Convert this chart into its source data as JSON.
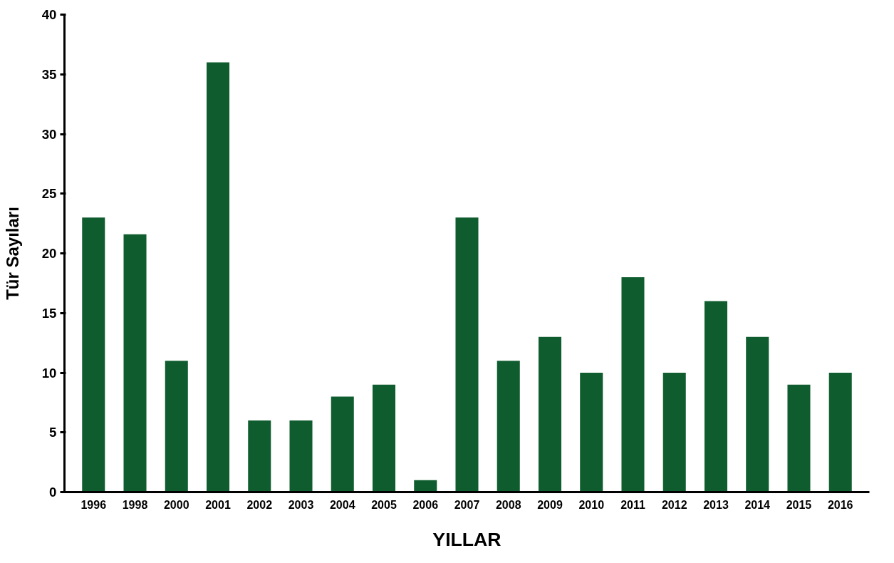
{
  "chart_data": {
    "type": "bar",
    "xlabel": "YILLAR",
    "ylabel": "Tür Sayıları",
    "categories": [
      "1996",
      "1998",
      "2000",
      "2001",
      "2002",
      "2003",
      "2004",
      "2005",
      "2006",
      "2007",
      "2008",
      "2009",
      "2010",
      "2011",
      "2012",
      "2013",
      "2014",
      "2015",
      "2016"
    ],
    "values": [
      23,
      21.6,
      11,
      36,
      6,
      6,
      8,
      9,
      1,
      23,
      11,
      13,
      10,
      18,
      10,
      16,
      13,
      9,
      10
    ],
    "color": "#0f5c2e",
    "ylim": [
      0,
      40
    ],
    "yticks": [
      0,
      5,
      10,
      15,
      20,
      25,
      30,
      35,
      40
    ],
    "grid": false
  }
}
